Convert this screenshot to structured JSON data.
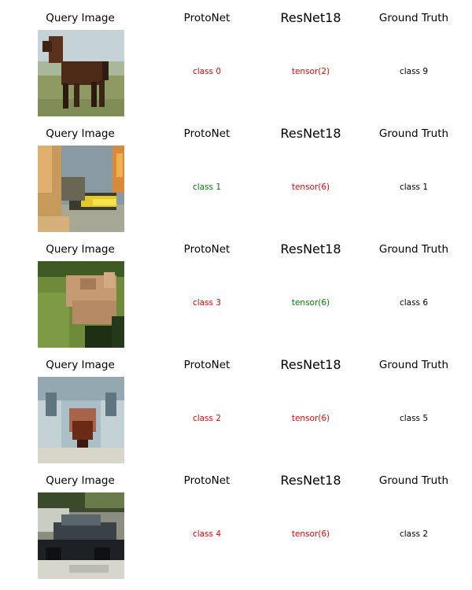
{
  "headers": {
    "query": "Query Image",
    "protonet": "ProtoNet",
    "resnet": "ResNet18",
    "ground_truth": "Ground Truth"
  },
  "colors": {
    "correct": "#008000",
    "incorrect": "#ff0000",
    "neutral": "#000000"
  },
  "rows": [
    {
      "image_subject": "horse-in-field",
      "protonet": {
        "text": "class 0",
        "status": "incorrect"
      },
      "resnet": {
        "text": "tensor(2)",
        "status": "incorrect"
      },
      "ground_truth": "class 9"
    },
    {
      "image_subject": "airplane-blurred",
      "protonet": {
        "text": "class 1",
        "status": "correct"
      },
      "resnet": {
        "text": "tensor(6)",
        "status": "incorrect"
      },
      "ground_truth": "class 1"
    },
    {
      "image_subject": "deer-on-grass",
      "protonet": {
        "text": "class 3",
        "status": "incorrect"
      },
      "resnet": {
        "text": "tensor(6)",
        "status": "correct"
      },
      "ground_truth": "class 6"
    },
    {
      "image_subject": "cat-face-closeup",
      "protonet": {
        "text": "class 2",
        "status": "incorrect"
      },
      "resnet": {
        "text": "tensor(6)",
        "status": "incorrect"
      },
      "ground_truth": "class 5"
    },
    {
      "image_subject": "car-on-street",
      "protonet": {
        "text": "class 4",
        "status": "incorrect"
      },
      "resnet": {
        "text": "tensor(6)",
        "status": "incorrect"
      },
      "ground_truth": "class 2"
    }
  ]
}
